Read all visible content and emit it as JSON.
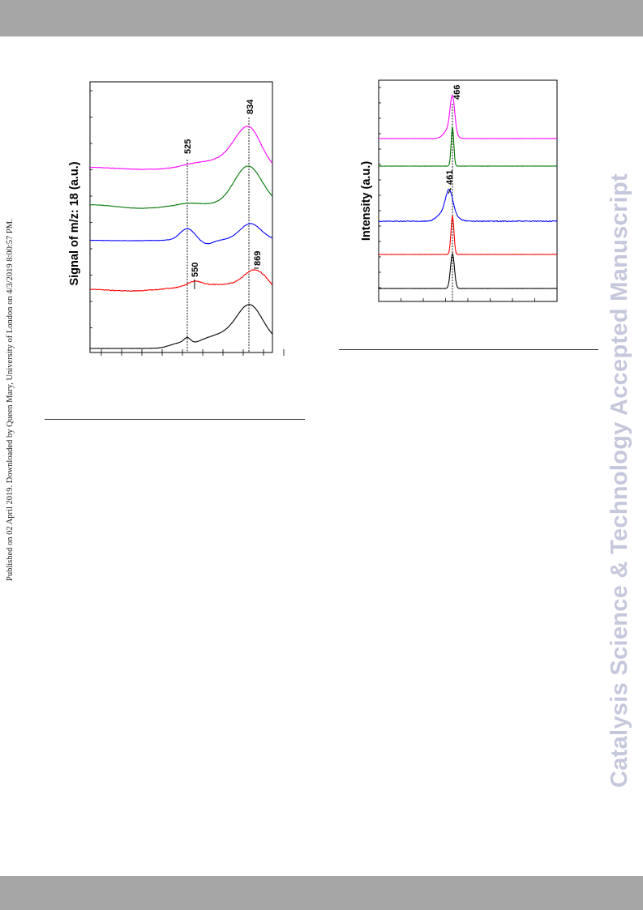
{
  "header_band": "",
  "published_note": "Published on 02 April 2019. Downloaded by Queen Mary, University of London on 4/3/2019 8:00:57 PM.",
  "watermark": "Catalysis Science & Technology Accepted Manuscript",
  "chart_data": [
    {
      "type": "line",
      "orientation": "rotated-90",
      "ylabel": "Signal of m/z: 18 (a.u.)",
      "xlabel": "",
      "annotations": [
        "525",
        "834",
        "550",
        "869"
      ],
      "reference_lines": [
        525,
        834
      ],
      "series": [
        {
          "color": "#ff00ff",
          "values": "shifted TPR trace with peak near 834"
        },
        {
          "color": "#007700",
          "values": "TPR trace with peak near 834"
        },
        {
          "color": "#0000ff",
          "values": "TPR trace with peaks near 525 and 834"
        },
        {
          "color": "#ff0000",
          "values": "TPR trace with peaks near 550 and 869"
        },
        {
          "color": "#000000",
          "values": "TPR trace with peaks near 525 and 834"
        }
      ]
    },
    {
      "type": "line",
      "orientation": "rotated-90",
      "ylabel": "Intensity (a.u.)",
      "xlabel": "",
      "annotations": [
        "466",
        "461"
      ],
      "reference_lines": [
        466
      ],
      "series": [
        {
          "color": "#ff00ff",
          "values": "Raman band near 466"
        },
        {
          "color": "#007700",
          "values": "Raman band near 466"
        },
        {
          "color": "#0000ff",
          "values": "Raman band near 461"
        },
        {
          "color": "#ff0000",
          "values": "Raman band near 466"
        },
        {
          "color": "#000000",
          "values": "Raman band near 466"
        }
      ]
    }
  ]
}
